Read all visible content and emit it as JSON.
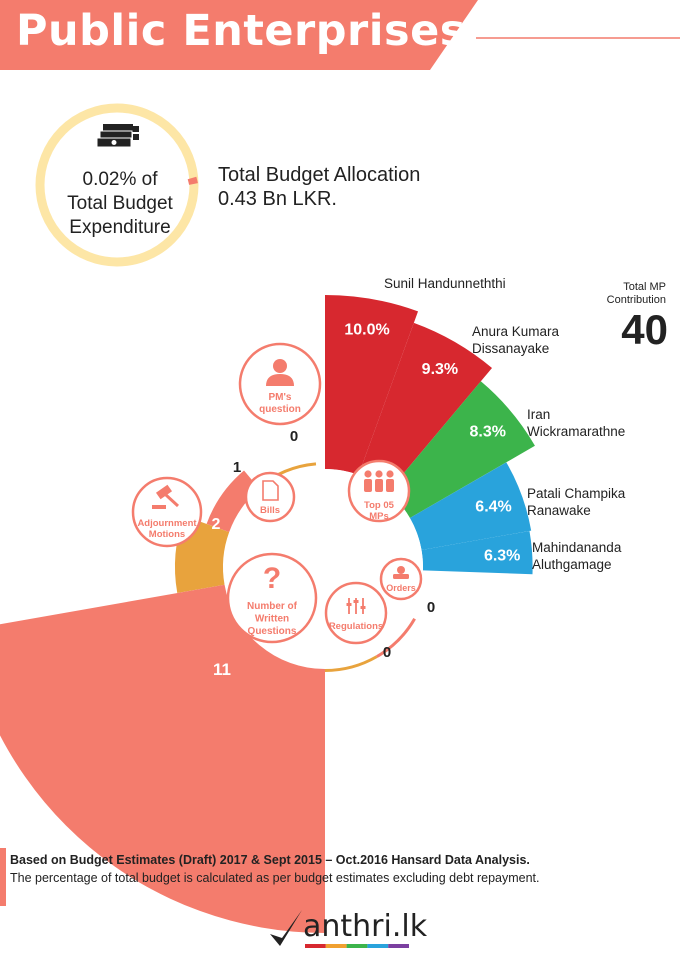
{
  "header": {
    "title": "Public Enterprises"
  },
  "budget": {
    "share_line1": "0.02% of",
    "share_line2": "Total Budget",
    "share_line3": "Expenditure",
    "allocation_line1": "Total Budget Allocation",
    "allocation_line2": "0.43 Bn LKR.",
    "share_percent": 0.02
  },
  "mp_total": {
    "label_line1": "Total MP",
    "label_line2": "Contribution",
    "value": "40"
  },
  "chart_data": [
    {
      "type": "bar",
      "title": "Top 05 MPs",
      "categories": [
        "Sunil Handunneththi",
        "Anura Kumara Dissanayake",
        "Iran Wickramarathne",
        "Patali Champika Ranawake",
        "Mahindananda Aluthgamage"
      ],
      "name_lines": [
        [
          "Sunil Handunneththi"
        ],
        [
          "Anura Kumara",
          "Dissanayake"
        ],
        [
          "Iran",
          "Wickramarathne"
        ],
        [
          "Patali Champika",
          "Ranawake"
        ],
        [
          "Mahindananda",
          "Aluthgamage"
        ]
      ],
      "values": [
        10.0,
        9.3,
        8.3,
        6.4,
        6.3
      ],
      "labels": [
        "10.0%",
        "9.3%",
        "8.3%",
        "6.4%",
        "6.3%"
      ],
      "colors": [
        "#d7282f",
        "#d7282f",
        "#3cb44b",
        "#29a3dc",
        "#29a3dc"
      ]
    },
    {
      "type": "bar",
      "categories": [
        "PM's question",
        "Bills",
        "Adjournment Motions",
        "Number of Written Questions",
        "Regulations",
        "Orders"
      ],
      "label_lines": [
        [
          "PM's",
          "question"
        ],
        [
          "Bills"
        ],
        [
          "Adjournment",
          "Motions"
        ],
        [
          "Number of",
          "Written",
          "Questions"
        ],
        [
          "Regulations"
        ],
        [
          "Orders"
        ]
      ],
      "values": [
        0,
        1,
        2,
        11,
        0,
        0
      ],
      "labels": [
        "0",
        "1",
        "2",
        "11",
        "0",
        "0"
      ],
      "colors": [
        "#e8a33d",
        "#f47c6d",
        "#e8a33d",
        "#f47c6d",
        "#e8a33d",
        "#f47c6d"
      ]
    }
  ],
  "footer": {
    "line1": "Based on Budget Estimates (Draft) 2017 & Sept 2015 – Oct.2016  Hansard Data Analysis.",
    "line2": "The percentage of total budget is calculated as per budget estimates excluding debt repayment."
  },
  "logo": {
    "text": "anthri.lk",
    "colors": [
      "#d7282f",
      "#f0a030",
      "#3cb44b",
      "#29a3dc",
      "#7b3fa0"
    ]
  }
}
